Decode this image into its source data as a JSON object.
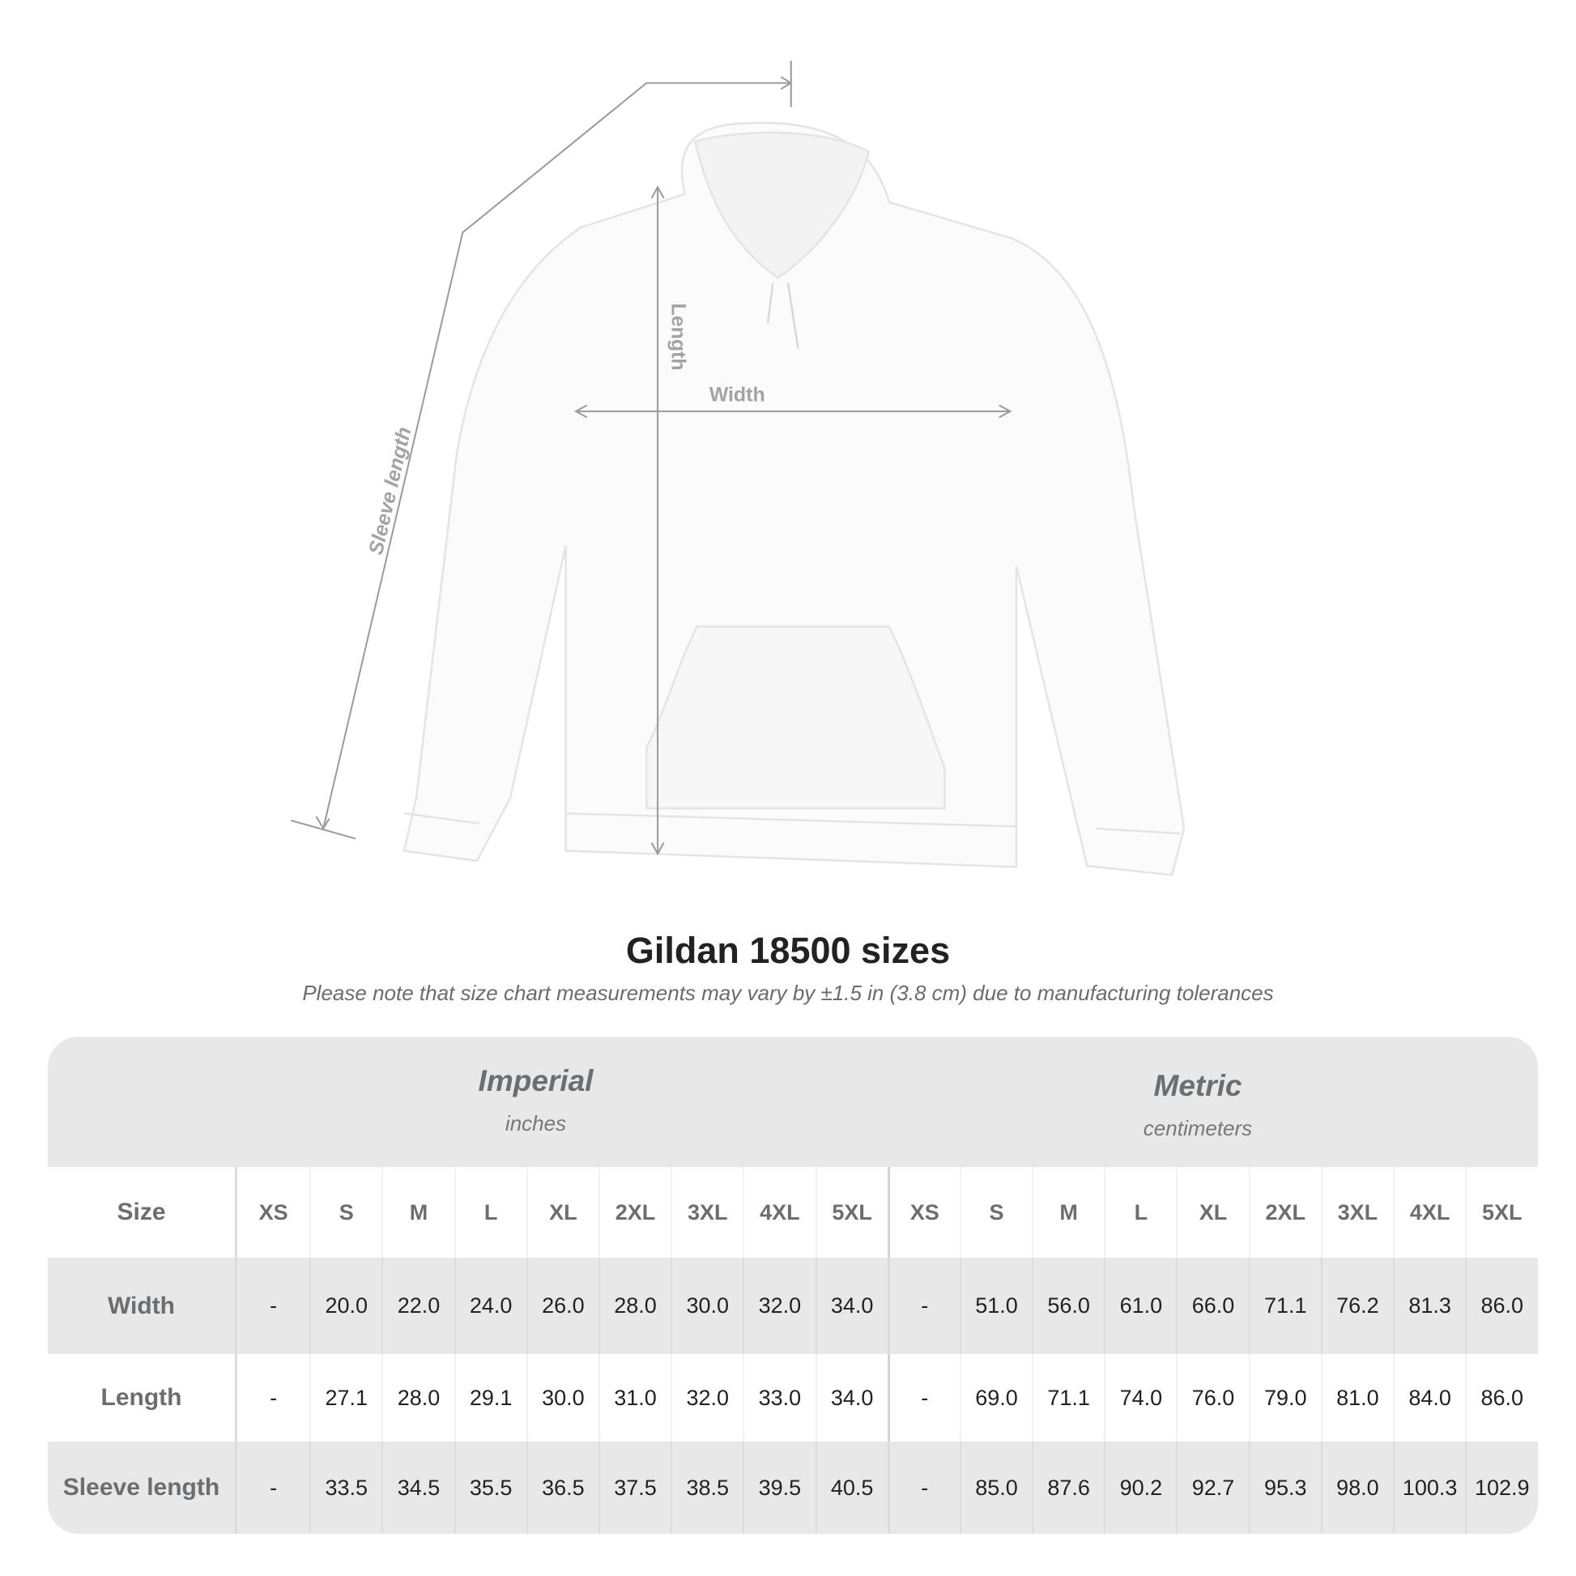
{
  "illustration": {
    "labels": {
      "sleeve": "Sleeve length",
      "length": "Length",
      "width": "Width"
    }
  },
  "title": "Gildan 18500 sizes",
  "subtitle": "Please note that size chart measurements may vary by ±1.5 in (3.8 cm) due to manufacturing tolerances",
  "table": {
    "imperial": {
      "name": "Imperial",
      "unit": "inches"
    },
    "metric": {
      "name": "Metric",
      "unit": "centimeters"
    },
    "size_label": "Size",
    "sizes": [
      "XS",
      "S",
      "M",
      "L",
      "XL",
      "2XL",
      "3XL",
      "4XL",
      "5XL"
    ],
    "rows": [
      {
        "label": "Width",
        "imperial": [
          "-",
          "20.0",
          "22.0",
          "24.0",
          "26.0",
          "28.0",
          "30.0",
          "32.0",
          "34.0"
        ],
        "metric": [
          "-",
          "51.0",
          "56.0",
          "61.0",
          "66.0",
          "71.1",
          "76.2",
          "81.3",
          "86.0"
        ]
      },
      {
        "label": "Length",
        "imperial": [
          "-",
          "27.1",
          "28.0",
          "29.1",
          "30.0",
          "31.0",
          "32.0",
          "33.0",
          "34.0"
        ],
        "metric": [
          "-",
          "69.0",
          "71.1",
          "74.0",
          "76.0",
          "79.0",
          "81.0",
          "84.0",
          "86.0"
        ]
      },
      {
        "label": "Sleeve length",
        "imperial": [
          "-",
          "33.5",
          "34.5",
          "35.5",
          "36.5",
          "37.5",
          "38.5",
          "39.5",
          "40.5"
        ],
        "metric": [
          "-",
          "85.0",
          "87.6",
          "90.2",
          "92.7",
          "95.3",
          "98.0",
          "100.3",
          "102.9"
        ]
      }
    ]
  }
}
